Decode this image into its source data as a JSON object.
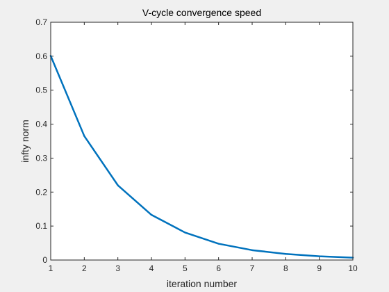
{
  "chart_data": {
    "type": "line",
    "title": "V-cycle convergence speed",
    "xlabel": "iteration number",
    "ylabel": "infty norm",
    "x": [
      1,
      2,
      3,
      4,
      5,
      6,
      7,
      8,
      9,
      10
    ],
    "series": [
      {
        "values": [
          0.601,
          0.365,
          0.22,
          0.133,
          0.081,
          0.048,
          0.029,
          0.018,
          0.011,
          0.007
        ]
      }
    ],
    "xlim": [
      1,
      10
    ],
    "ylim": [
      0,
      0.7
    ],
    "xticks": [
      "1",
      "2",
      "3",
      "4",
      "5",
      "6",
      "7",
      "8",
      "9",
      "10"
    ],
    "yticks": [
      "0",
      "0.1",
      "0.2",
      "0.3",
      "0.4",
      "0.5",
      "0.6",
      "0.7"
    ],
    "grid": false,
    "legend": "none",
    "colors": {
      "line": "#0072bd",
      "axes": "#262626",
      "plot_background": "#ffffff",
      "figure_background": "#f0f0f0"
    }
  }
}
